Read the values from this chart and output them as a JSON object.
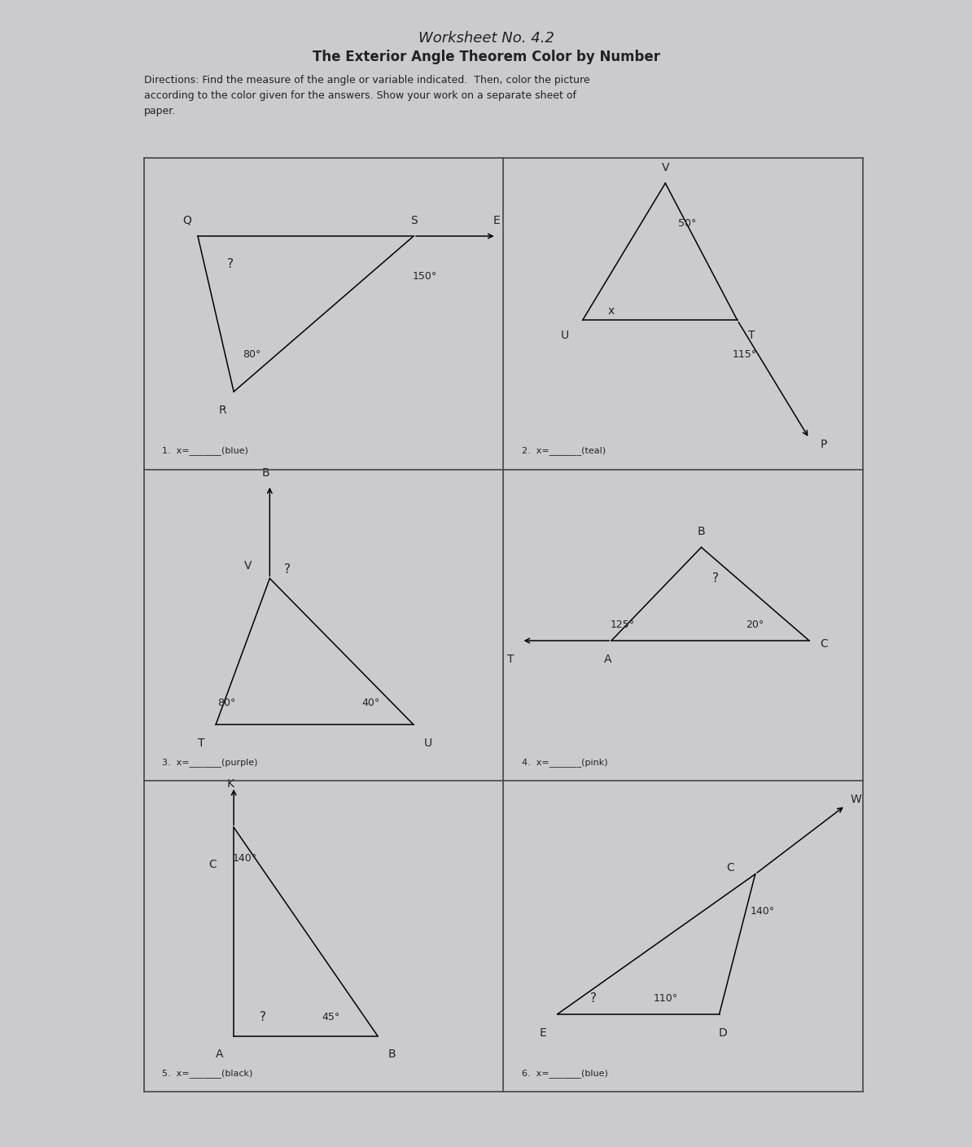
{
  "title_handwritten": "Worksheet No. 4.2",
  "title_main": "The Exterior Angle Theorem Color by Number",
  "directions": "Directions: Find the measure of the angle or variable indicated.  Then, color the picture\naccording to the color given for the answers. Show your work on a separate sheet of\npaper.",
  "bg_color": "#cbcbcf",
  "text_color": "#222222",
  "grid_color": "#444444"
}
